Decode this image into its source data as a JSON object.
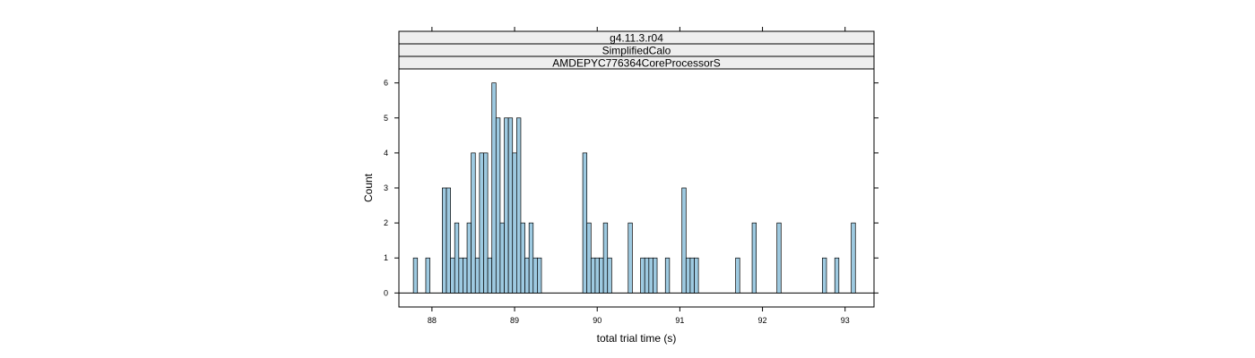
{
  "chart_data": {
    "type": "bar",
    "subtype": "histogram",
    "strips": [
      "g4.11.3.r04",
      "SimplifiedCalo",
      "AMDEPYC776364CoreProcessorS"
    ],
    "xlabel": "total trial time (s)",
    "ylabel": "Count",
    "xlim": [
      87.6,
      93.35
    ],
    "ylim": [
      -0.4,
      6.4
    ],
    "x_ticks": [
      88,
      89,
      90,
      91,
      92,
      93
    ],
    "y_ticks": [
      0,
      1,
      2,
      3,
      4,
      5,
      6
    ],
    "baseline": [
      87.6,
      93.35
    ],
    "bin_width": 0.05,
    "bar_color": "#9ecae1",
    "bins": [
      {
        "x": 87.8,
        "count": 1
      },
      {
        "x": 87.95,
        "count": 1
      },
      {
        "x": 88.15,
        "count": 3
      },
      {
        "x": 88.2,
        "count": 3
      },
      {
        "x": 88.25,
        "count": 1
      },
      {
        "x": 88.3,
        "count": 2
      },
      {
        "x": 88.35,
        "count": 1
      },
      {
        "x": 88.4,
        "count": 1
      },
      {
        "x": 88.45,
        "count": 2
      },
      {
        "x": 88.5,
        "count": 4
      },
      {
        "x": 88.55,
        "count": 1
      },
      {
        "x": 88.6,
        "count": 4
      },
      {
        "x": 88.65,
        "count": 4
      },
      {
        "x": 88.7,
        "count": 1
      },
      {
        "x": 88.75,
        "count": 6
      },
      {
        "x": 88.8,
        "count": 5
      },
      {
        "x": 88.85,
        "count": 2
      },
      {
        "x": 88.9,
        "count": 5
      },
      {
        "x": 88.95,
        "count": 5
      },
      {
        "x": 89.0,
        "count": 4
      },
      {
        "x": 89.05,
        "count": 5
      },
      {
        "x": 89.1,
        "count": 2
      },
      {
        "x": 89.15,
        "count": 1
      },
      {
        "x": 89.2,
        "count": 2
      },
      {
        "x": 89.25,
        "count": 1
      },
      {
        "x": 89.3,
        "count": 1
      },
      {
        "x": 89.85,
        "count": 4
      },
      {
        "x": 89.9,
        "count": 2
      },
      {
        "x": 89.95,
        "count": 1
      },
      {
        "x": 90.0,
        "count": 1
      },
      {
        "x": 90.05,
        "count": 1
      },
      {
        "x": 90.1,
        "count": 2
      },
      {
        "x": 90.15,
        "count": 1
      },
      {
        "x": 90.4,
        "count": 2
      },
      {
        "x": 90.55,
        "count": 1
      },
      {
        "x": 90.6,
        "count": 1
      },
      {
        "x": 90.65,
        "count": 1
      },
      {
        "x": 90.7,
        "count": 1
      },
      {
        "x": 90.85,
        "count": 1
      },
      {
        "x": 91.05,
        "count": 3
      },
      {
        "x": 91.1,
        "count": 1
      },
      {
        "x": 91.15,
        "count": 1
      },
      {
        "x": 91.2,
        "count": 1
      },
      {
        "x": 91.7,
        "count": 1
      },
      {
        "x": 91.9,
        "count": 2
      },
      {
        "x": 92.2,
        "count": 2
      },
      {
        "x": 92.75,
        "count": 1
      },
      {
        "x": 92.9,
        "count": 1
      },
      {
        "x": 93.1,
        "count": 2
      }
    ]
  }
}
